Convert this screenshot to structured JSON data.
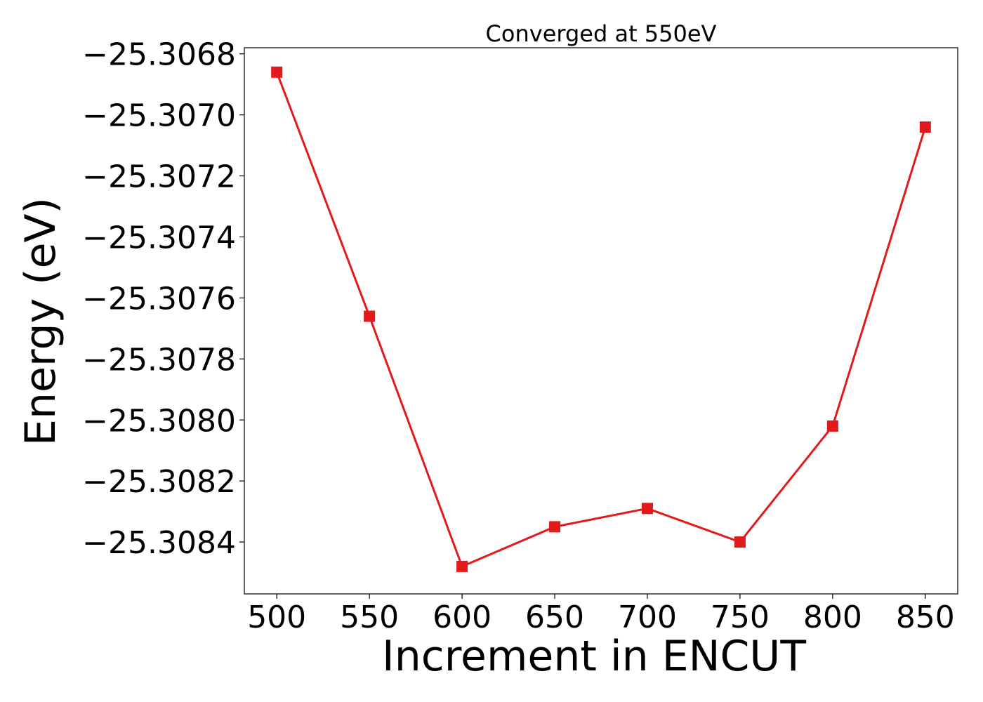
{
  "chart_data": {
    "type": "line",
    "title": "Converged at 550eV",
    "xlabel": "Increment in ENCUT",
    "ylabel": "Energy (eV)",
    "x": [
      500,
      550,
      600,
      650,
      700,
      750,
      800,
      850
    ],
    "x_ticks": [
      500,
      550,
      600,
      650,
      700,
      750,
      800,
      850
    ],
    "x_tick_labels": [
      "500",
      "550",
      "600",
      "650",
      "700",
      "750",
      "800",
      "850"
    ],
    "xlim": [
      482.5,
      867.5
    ],
    "y_ticks": [
      -25.3068,
      -25.307,
      -25.3072,
      -25.3074,
      -25.3076,
      -25.3078,
      -25.308,
      -25.3082,
      -25.3084
    ],
    "y_tick_labels": [
      "−25.3068",
      "−25.3070",
      "−25.3072",
      "−25.3074",
      "−25.3076",
      "−25.3078",
      "−25.3080",
      "−25.3082",
      "−25.3084"
    ],
    "ylim": [
      -25.30857,
      -25.30678
    ],
    "grid": false,
    "series": [
      {
        "values": [
          -25.30686,
          -25.30766,
          -25.30848,
          -25.30835,
          -25.30829,
          -25.3084,
          -25.30802,
          -25.30704
        ],
        "color": "#e31a1c",
        "marker": "square"
      }
    ]
  }
}
